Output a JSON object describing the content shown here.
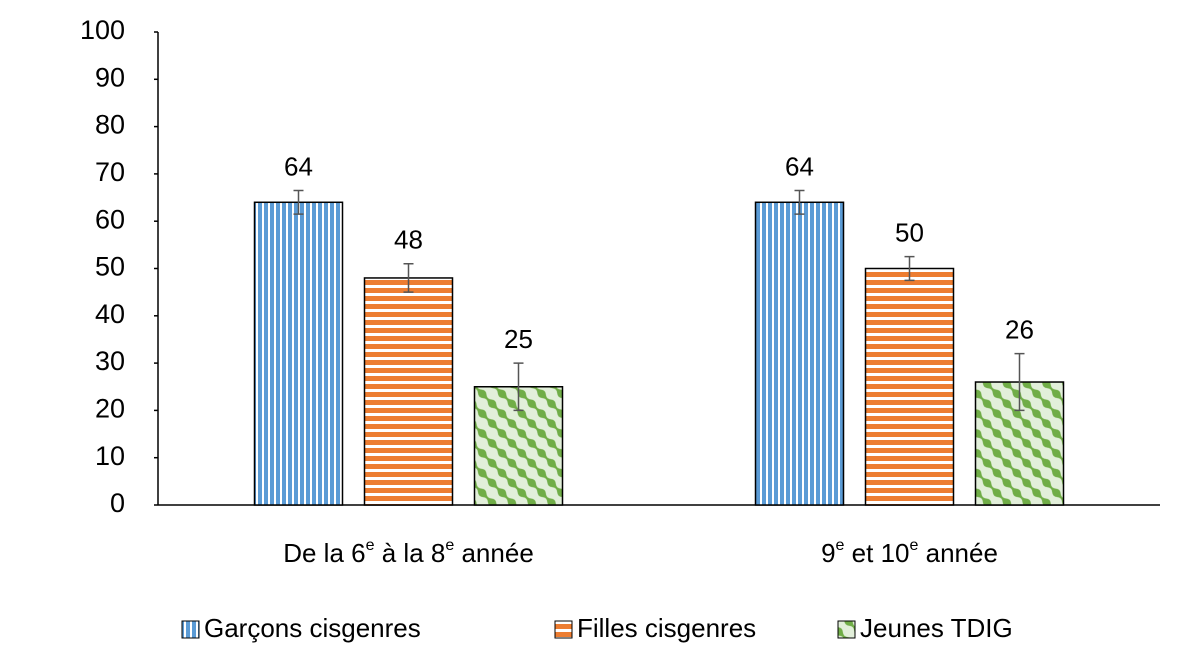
{
  "chart_data": {
    "type": "bar",
    "categories": [
      "De la 6e à la 8e année",
      "9e et 10e année"
    ],
    "series": [
      {
        "name": "Garçons cisgenres",
        "color": "#5b9bd5",
        "pattern": "vertical",
        "values": [
          64,
          64
        ],
        "errors": [
          2.5,
          2.5
        ]
      },
      {
        "name": "Filles cisgenres",
        "color": "#ed7d31",
        "pattern": "horizontal",
        "values": [
          48,
          50
        ],
        "errors": [
          3,
          2.5
        ]
      },
      {
        "name": "Jeunes TDIG",
        "color": "#70ad47",
        "pattern": "diagonal",
        "values": [
          25,
          26
        ],
        "errors": [
          5,
          6
        ]
      }
    ],
    "ylim": [
      0,
      100
    ],
    "yticks": [
      0,
      10,
      20,
      30,
      40,
      50,
      60,
      70,
      80,
      90,
      100
    ],
    "grid": false,
    "legend": "bottom"
  }
}
